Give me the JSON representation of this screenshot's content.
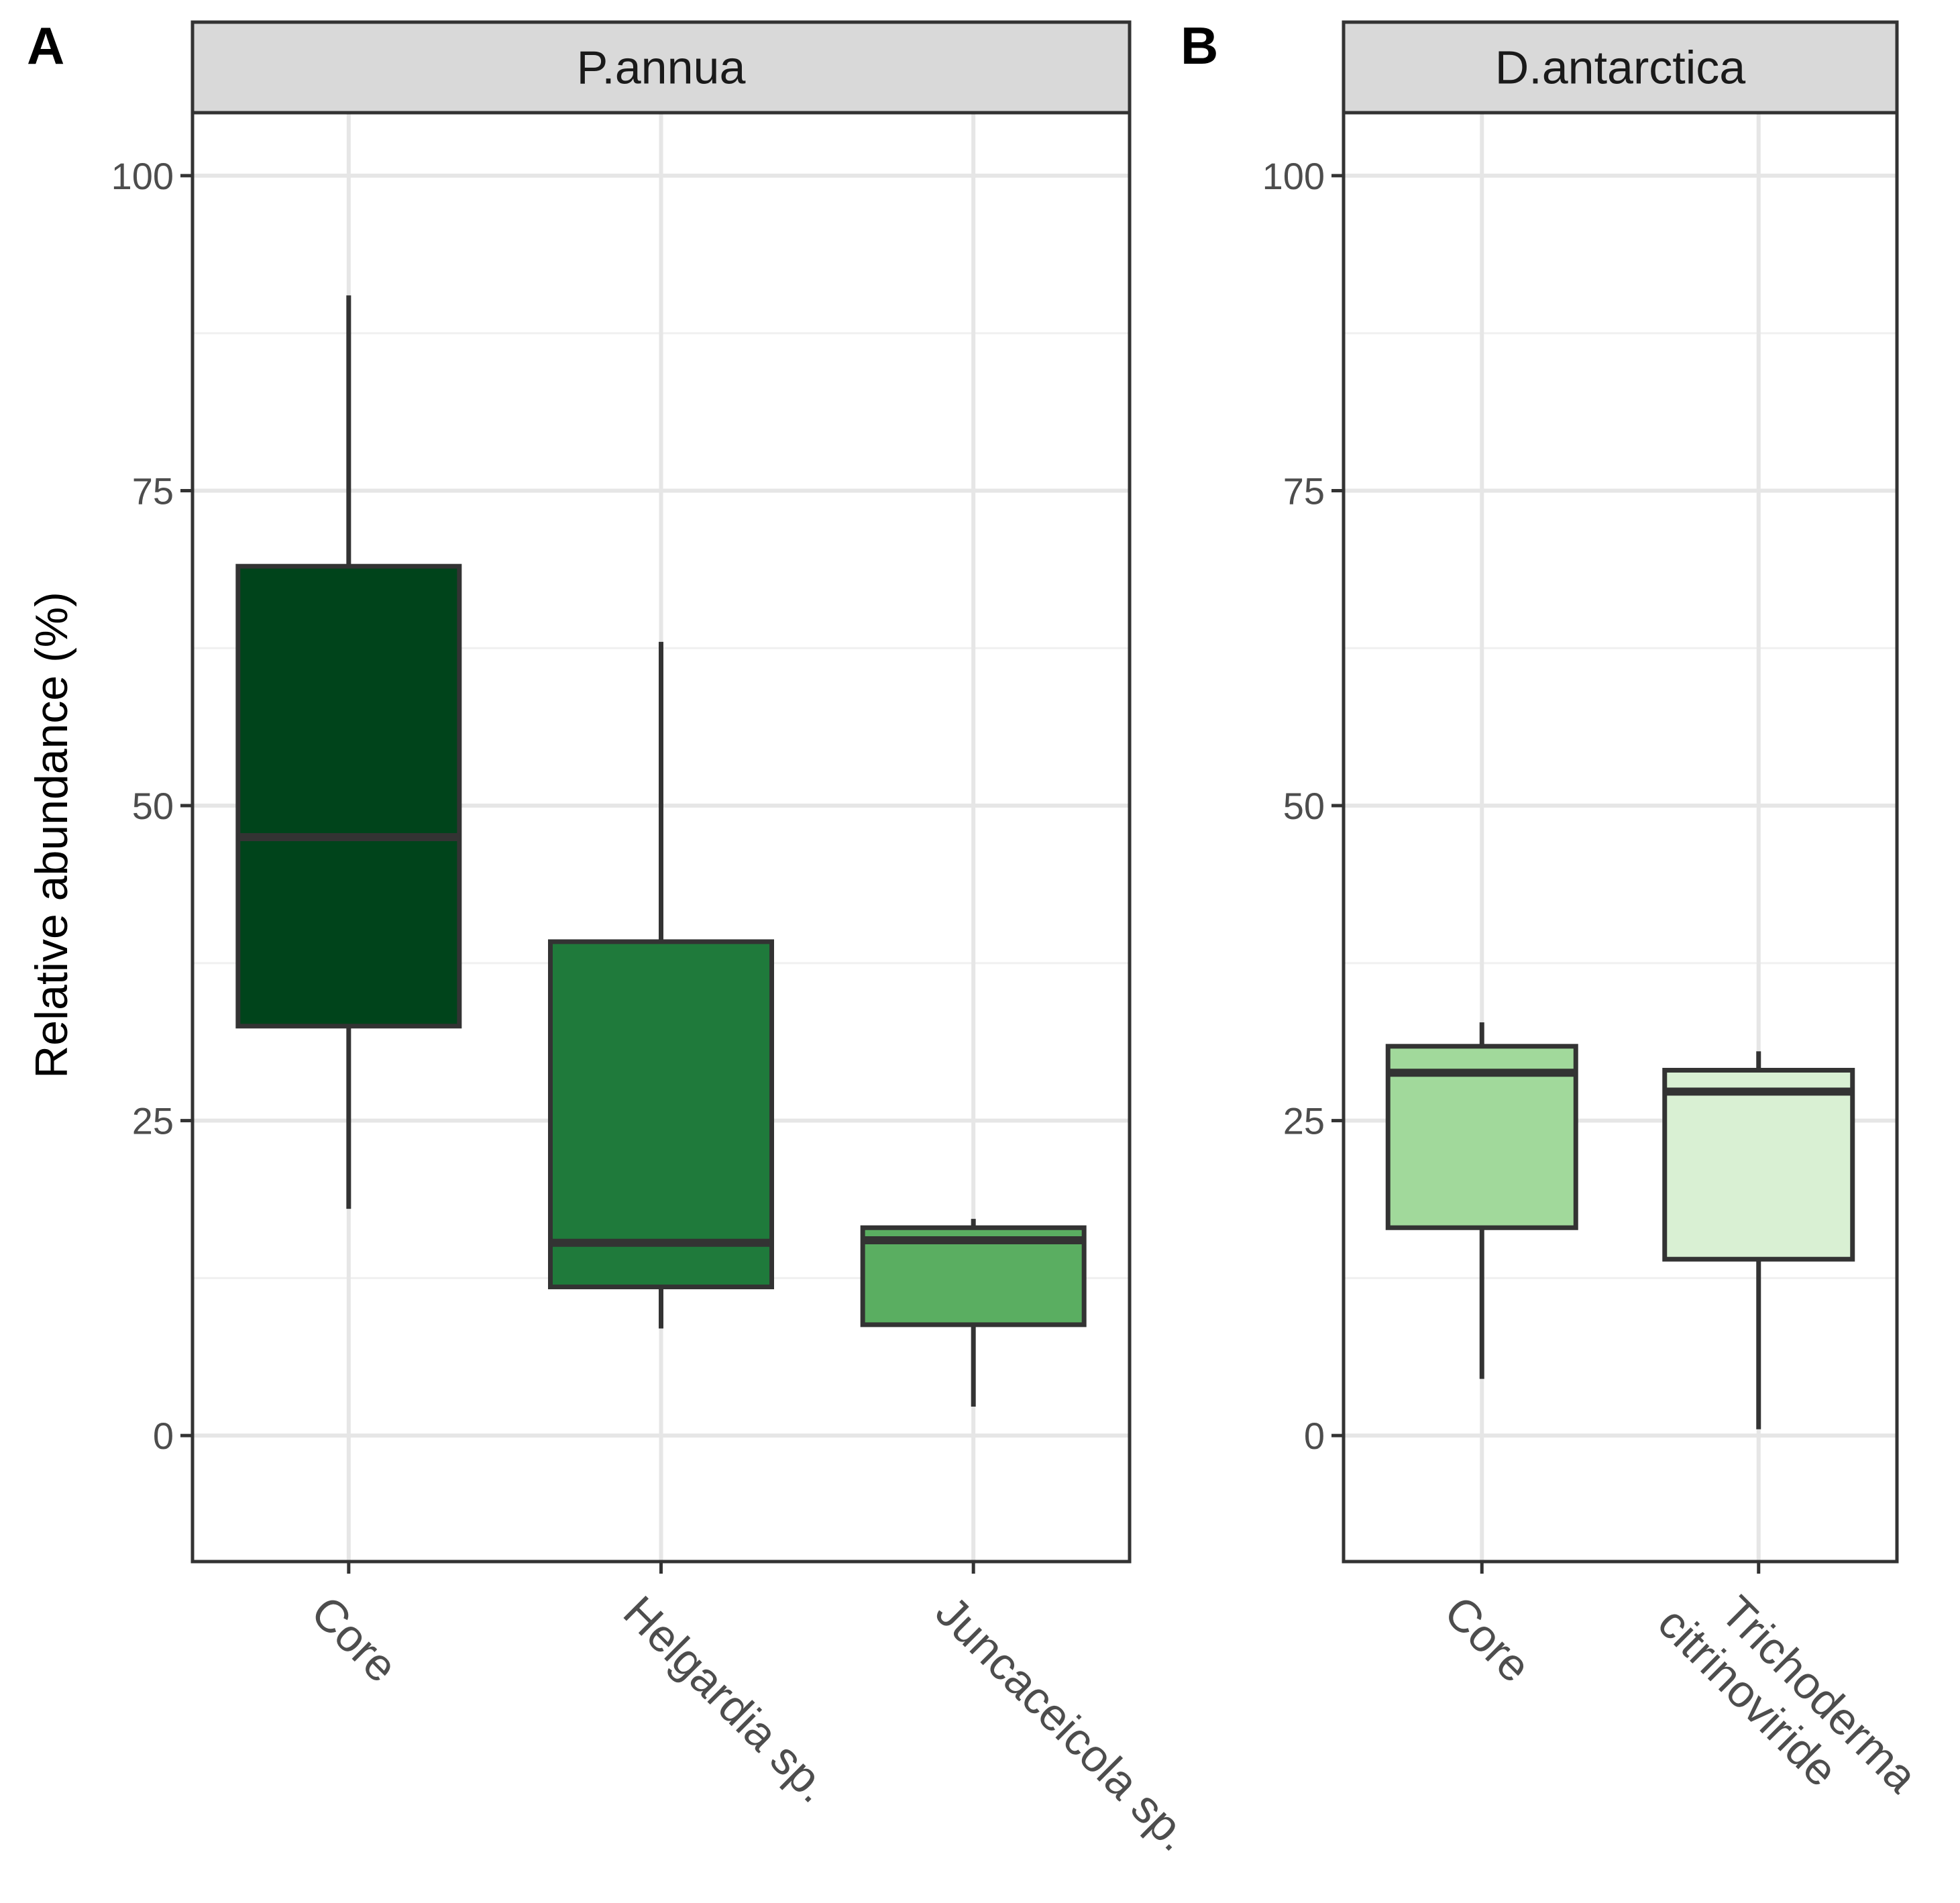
{
  "figure": {
    "ylabel": "Relative abundance (%)"
  },
  "chart_data": [
    {
      "type": "boxplot",
      "panel_letter": "A",
      "facet_title": "P.annua",
      "ylabel": "Relative abundance (%)",
      "xlabel": "",
      "ylim": [
        -10,
        105
      ],
      "yticks": [
        0,
        25,
        50,
        75,
        100
      ],
      "ytick_labels": [
        "0",
        "25",
        "50",
        "75",
        "100"
      ],
      "grid": true,
      "categories": [
        "Core",
        "Helgardia sp.",
        "Juncaceicola sp."
      ],
      "boxes": [
        {
          "name": "Core",
          "whisker_low": 18,
          "q1": 32.5,
          "median": 47.5,
          "q3": 69,
          "whisker_high": 90.5,
          "fill": "#00441b"
        },
        {
          "name": "Helgardia sp.",
          "whisker_low": 8.5,
          "q1": 11.8,
          "median": 15.3,
          "q3": 39.2,
          "whisker_high": 63,
          "fill": "#1f7a3b"
        },
        {
          "name": "Juncaceicola sp.",
          "whisker_low": 2.3,
          "q1": 8.8,
          "median": 15.5,
          "q3": 16.5,
          "whisker_high": 17.2,
          "fill": "#5aae61"
        }
      ]
    },
    {
      "type": "boxplot",
      "panel_letter": "B",
      "facet_title": "D.antarctica",
      "ylabel": "",
      "xlabel": "",
      "ylim": [
        -10,
        105
      ],
      "yticks": [
        0,
        25,
        50,
        75,
        100
      ],
      "ytick_labels": [
        "0",
        "25",
        "50",
        "75",
        "100"
      ],
      "grid": true,
      "categories": [
        "Core",
        "Trichoderma citrinoviride"
      ],
      "boxes": [
        {
          "name": "Core",
          "label_lines": [
            "Core"
          ],
          "whisker_low": 4.5,
          "q1": 16.5,
          "median": 28.8,
          "q3": 30.9,
          "whisker_high": 32.8,
          "fill": "#a1d99b"
        },
        {
          "name": "Trichoderma citrinoviride",
          "label_lines": [
            "Trichoderma",
            "citrinoviride"
          ],
          "whisker_low": 0.5,
          "q1": 14,
          "median": 27.3,
          "q3": 29,
          "whisker_high": 30.5,
          "fill": "#d9f0d3"
        }
      ]
    }
  ]
}
